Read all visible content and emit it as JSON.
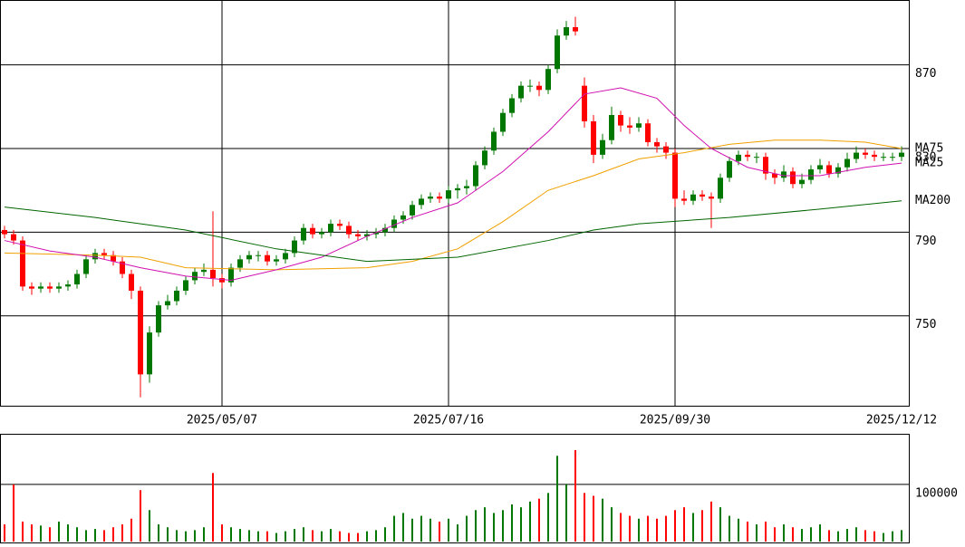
{
  "chart_data": [
    {
      "type": "candlestick",
      "up_color": "#007700",
      "down_color": "#ff0000",
      "open": [
        791,
        789,
        786,
        764,
        763,
        764,
        763,
        764,
        765,
        770,
        777,
        780,
        779,
        776,
        770,
        762,
        722,
        742,
        755,
        757,
        762,
        767,
        771,
        772,
        768,
        766,
        773,
        777,
        779,
        779,
        776,
        777,
        780,
        786,
        792,
        789,
        790,
        794,
        793,
        789,
        788,
        789,
        790,
        792,
        796,
        798,
        803,
        806,
        807,
        806,
        810,
        811,
        812,
        822,
        829,
        838,
        847,
        854,
        860,
        860,
        858,
        868,
        884,
        888,
        860,
        843,
        827,
        834,
        846,
        841,
        840,
        842,
        833,
        831,
        828,
        806,
        805,
        808,
        807,
        806,
        816,
        824,
        827,
        826,
        826,
        818,
        816,
        819,
        813,
        815,
        820,
        822,
        818,
        821,
        825,
        828,
        827,
        826,
        826,
        826
      ],
      "high": [
        793,
        791,
        788,
        766,
        766,
        766,
        766,
        767,
        772,
        779,
        782,
        782,
        781,
        778,
        772,
        764,
        745,
        757,
        760,
        764,
        769,
        773,
        775,
        800,
        770,
        775,
        779,
        781,
        781,
        781,
        779,
        782,
        788,
        794,
        794,
        792,
        796,
        796,
        795,
        791,
        791,
        792,
        794,
        798,
        800,
        805,
        808,
        809,
        809,
        812,
        813,
        815,
        824,
        831,
        840,
        849,
        856,
        862,
        863,
        862,
        870,
        887,
        891,
        893,
        864,
        846,
        837,
        850,
        848,
        845,
        845,
        844,
        835,
        833,
        830,
        810,
        810,
        810,
        809,
        818,
        826,
        829,
        829,
        828,
        828,
        820,
        822,
        821,
        818,
        822,
        825,
        824,
        823,
        828,
        831,
        830,
        829,
        828,
        828,
        831
      ],
      "low": [
        787,
        784,
        762,
        760,
        761,
        761,
        761,
        762,
        763,
        768,
        775,
        777,
        774,
        768,
        758,
        711,
        718,
        740,
        753,
        755,
        760,
        765,
        769,
        764,
        763,
        764,
        771,
        775,
        776,
        774,
        774,
        775,
        778,
        784,
        787,
        787,
        788,
        791,
        787,
        786,
        786,
        787,
        788,
        790,
        794,
        796,
        801,
        804,
        804,
        804,
        806,
        808,
        810,
        820,
        827,
        836,
        845,
        852,
        857,
        855,
        856,
        866,
        882,
        884,
        840,
        823,
        825,
        832,
        838,
        837,
        838,
        831,
        828,
        825,
        802,
        803,
        803,
        805,
        792,
        804,
        814,
        822,
        824,
        823,
        815,
        813,
        814,
        811,
        811,
        813,
        818,
        816,
        816,
        819,
        823,
        825,
        824,
        824,
        824,
        824
      ],
      "close": [
        789,
        786,
        764,
        763,
        764,
        763,
        764,
        765,
        770,
        777,
        780,
        779,
        776,
        770,
        762,
        722,
        742,
        755,
        757,
        762,
        767,
        771,
        772,
        768,
        766,
        773,
        777,
        779,
        779,
        776,
        777,
        780,
        786,
        792,
        789,
        790,
        794,
        793,
        789,
        788,
        789,
        790,
        792,
        796,
        798,
        803,
        806,
        807,
        806,
        810,
        811,
        812,
        822,
        829,
        838,
        847,
        854,
        860,
        860,
        858,
        868,
        884,
        888,
        886,
        843,
        827,
        834,
        846,
        841,
        840,
        842,
        833,
        831,
        828,
        806,
        805,
        808,
        807,
        806,
        816,
        824,
        827,
        826,
        826,
        818,
        816,
        819,
        813,
        815,
        820,
        822,
        818,
        821,
        825,
        828,
        827,
        826,
        826,
        826,
        828
      ],
      "series": [
        {
          "name": "MA75",
          "color": "#f0a000",
          "x": [
            0,
            10,
            15,
            20,
            30,
            40,
            45,
            50,
            55,
            60,
            65,
            70,
            75,
            80,
            85,
            90,
            95,
            99
          ],
          "values": [
            780,
            779,
            778,
            773,
            772,
            773,
            776,
            782,
            795,
            810,
            817,
            825,
            828,
            832,
            834,
            834,
            833,
            830
          ]
        },
        {
          "name": "MA25",
          "color": "#d010b0",
          "x": [
            0,
            5,
            10,
            15,
            20,
            25,
            30,
            35,
            40,
            45,
            50,
            55,
            60,
            64,
            68,
            72,
            75,
            78,
            82,
            86,
            90,
            95,
            99
          ],
          "values": [
            786,
            781,
            778,
            773,
            769,
            767,
            772,
            778,
            788,
            797,
            804,
            819,
            838,
            856,
            859,
            854,
            841,
            830,
            821,
            817,
            817,
            821,
            823
          ]
        },
        {
          "name": "MA200",
          "color": "#006600",
          "x": [
            0,
            10,
            20,
            30,
            40,
            50,
            60,
            65,
            70,
            80,
            90,
            99
          ],
          "values": [
            802,
            797,
            791,
            782,
            776,
            778,
            786,
            791,
            794,
            797,
            801,
            805
          ]
        }
      ],
      "ylim": [
        707,
        901
      ],
      "yticks": [
        750,
        790,
        830,
        870
      ],
      "xticks": [
        {
          "value": 24,
          "label": "2025/05/07"
        },
        {
          "value": 49,
          "label": "2025/07/16"
        },
        {
          "value": 74,
          "label": "2025/09/30"
        },
        {
          "value": 99,
          "label": "2025/12/12"
        }
      ],
      "grid": true
    },
    {
      "type": "bar",
      "values": [
        30000,
        100000,
        35000,
        30000,
        28000,
        25000,
        35000,
        30000,
        25000,
        20000,
        22000,
        20000,
        25000,
        30000,
        40000,
        90000,
        55000,
        30000,
        25000,
        20000,
        18000,
        20000,
        25000,
        120000,
        30000,
        25000,
        22000,
        20000,
        18000,
        18000,
        15000,
        18000,
        22000,
        25000,
        20000,
        18000,
        22000,
        18000,
        15000,
        15000,
        18000,
        20000,
        25000,
        45000,
        50000,
        40000,
        45000,
        40000,
        35000,
        40000,
        30000,
        45000,
        55000,
        60000,
        50000,
        55000,
        65000,
        60000,
        70000,
        75000,
        85000,
        150000,
        100000,
        160000,
        85000,
        80000,
        75000,
        60000,
        50000,
        45000,
        40000,
        45000,
        40000,
        45000,
        55000,
        60000,
        50000,
        55000,
        70000,
        60000,
        45000,
        40000,
        35000,
        30000,
        35000,
        25000,
        30000,
        25000,
        22000,
        25000,
        30000,
        20000,
        18000,
        22000,
        25000,
        20000,
        18000,
        15000,
        18000,
        20000
      ],
      "ylim": [
        0,
        187000
      ],
      "yticks": [
        100000
      ],
      "grid": true
    }
  ]
}
